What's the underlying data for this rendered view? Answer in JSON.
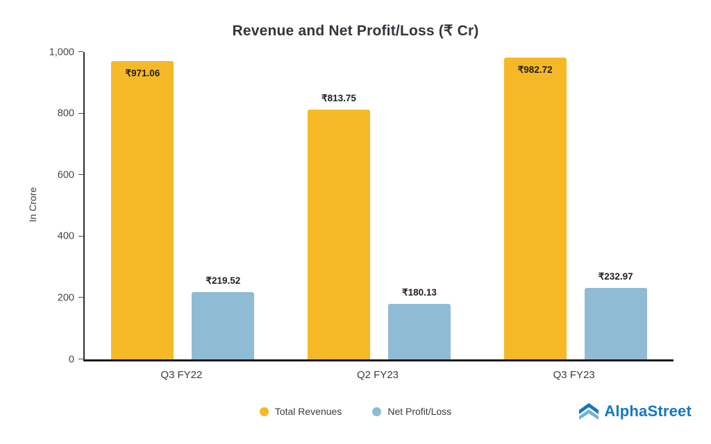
{
  "chart_data": {
    "type": "bar",
    "title": "Revenue and Net Profit/Loss (₹ Cr)",
    "ylabel": "In Crore",
    "xlabel": "",
    "categories": [
      "Q3 FY22",
      "Q2 FY23",
      "Q3 FY23"
    ],
    "series": [
      {
        "name": "Total Revenues",
        "color": "#F5B827",
        "values": [
          971.06,
          813.75,
          982.72
        ],
        "labels": [
          "₹971.06",
          "₹813.75",
          "₹982.72"
        ]
      },
      {
        "name": "Net Profit/Loss",
        "color": "#8FBCD4",
        "values": [
          219.52,
          180.13,
          232.97
        ],
        "labels": [
          "₹219.52",
          "₹180.13",
          "₹232.97"
        ]
      }
    ],
    "ylim": [
      0,
      1000
    ],
    "yticks": [
      0,
      200,
      400,
      600,
      800,
      1000
    ],
    "ytick_labels": [
      "0",
      "200",
      "400",
      "600",
      "800",
      "1,000"
    ],
    "grid": false,
    "legend_position": "bottom"
  },
  "branding": {
    "logo_text": "AlphaStreet",
    "logo_color": "#1478BD"
  }
}
